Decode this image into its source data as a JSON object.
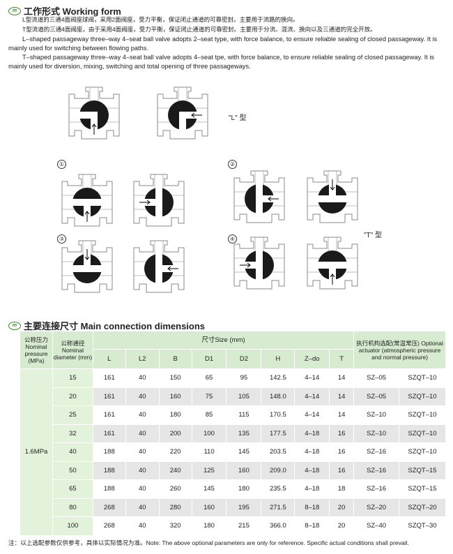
{
  "working_form": {
    "title": "工作形式 Working form",
    "cn_l": "L型流道的三通4面阀座球阀，采用2面阀座，受力平衡，保证闭止通道的可靠密封。主要用于流路的换向。",
    "cn_t": "T型流道的三通4面阀座，由于采用4面阀座，受力平衡，保证闭止通道的可靠密封。主要用于分流、混流、换向以及三通道的完全开放。",
    "en_l": "L–shaped passageway three–way 4–seat ball valve adopts 2–seat type, with force balance, to ensure reliable sealing of closed passageway. It is mainly used for switching between flowing paths.",
    "en_t": "T–shaped passageway three–way 4–seat ball valve adopts 4–seat tpe, with force balance, to ensure reliable sealing of closed passageway. It is mainly used for diversion, mixing, switching and total opening of three passageways.",
    "l_type_label": "\"L\" 型",
    "t_type_label": "\"T\" 型",
    "markers": [
      "①",
      "②",
      "③",
      "④"
    ]
  },
  "dimensions": {
    "title": "主要连接尺寸 Main connection dimensions",
    "headers": {
      "pressure": "公称压力 Nominal pressure (MPa)",
      "diameter": "公称通径 Nominal diameter (mm)",
      "size": "尺寸Size (mm)",
      "cols": [
        "L",
        "L2",
        "B",
        "D1",
        "D2",
        "H",
        "Z–do",
        "T"
      ],
      "actuator": "执行机构选配(常温常压) Optional actuator (atmospheric pressure and normal pressure)"
    },
    "pressure_value": "1.6MPa",
    "rows": [
      [
        "15",
        "161",
        "40",
        "150",
        "65",
        "95",
        "142.5",
        "4–14",
        "14",
        "SZ–05",
        "SZQT–10"
      ],
      [
        "20",
        "161",
        "40",
        "160",
        "75",
        "105",
        "148.0",
        "4–14",
        "14",
        "SZ–05",
        "SZQT–10"
      ],
      [
        "25",
        "161",
        "40",
        "180",
        "85",
        "115",
        "170.5",
        "4–14",
        "14",
        "SZ–10",
        "SZQT–10"
      ],
      [
        "32",
        "161",
        "40",
        "200",
        "100",
        "135",
        "177.5",
        "4–18",
        "16",
        "SZ–10",
        "SZQT–10"
      ],
      [
        "40",
        "188",
        "40",
        "220",
        "110",
        "145",
        "203.5",
        "4–18",
        "16",
        "SZ–16",
        "SZQT–10"
      ],
      [
        "50",
        "188",
        "40",
        "240",
        "125",
        "160",
        "209.0",
        "4–18",
        "16",
        "SZ–16",
        "SZQT–15"
      ],
      [
        "65",
        "188",
        "40",
        "260",
        "145",
        "180",
        "235.5",
        "4–18",
        "18",
        "SZ–16",
        "SZQT–15"
      ],
      [
        "80",
        "268",
        "40",
        "280",
        "160",
        "195",
        "271.5",
        "8–18",
        "20",
        "SZ–20",
        "SZQT–20"
      ],
      [
        "100",
        "268",
        "40",
        "320",
        "180",
        "215",
        "366.0",
        "8–18",
        "20",
        "SZ–40",
        "SZQT–30"
      ]
    ],
    "note": "注：以上选配参数仅供参考，具体以实际情况为准。Note: The above optional parameters are only for reference. Specific actual conditions shall prevail."
  },
  "colors": {
    "header_green": "#d6ebcf",
    "logo_green": "#3a8a2a",
    "ball": "#1a1a1a"
  }
}
